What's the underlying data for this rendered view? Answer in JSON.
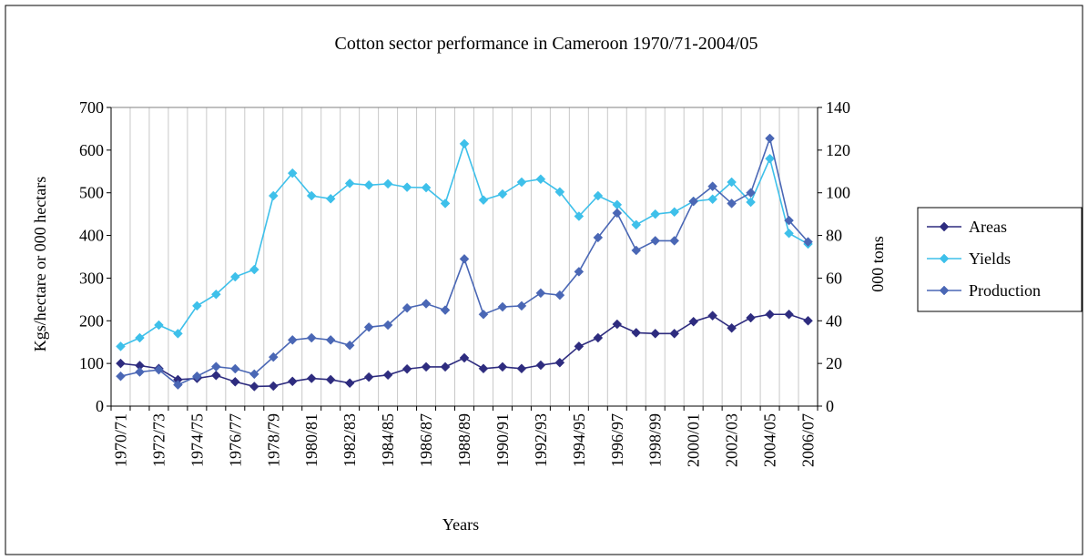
{
  "chart_data": {
    "type": "line",
    "title": "Cotton sector performance in Cameroon 1970/71-2004/05",
    "xlabel": "Years",
    "ylabel_left": "Kgs/hectare or 000 hectars",
    "ylabel_right": "000 tons",
    "ylim_left": [
      0,
      700
    ],
    "ylim_right": [
      0,
      140
    ],
    "yticks_left": [
      "0",
      "100",
      "200",
      "300",
      "400",
      "500",
      "600",
      "700"
    ],
    "yticks_right": [
      "0",
      "20",
      "40",
      "60",
      "80",
      "100",
      "120",
      "140"
    ],
    "grid": "vertical",
    "legend": "right",
    "categories": [
      "1970/71",
      "1971/72",
      "1972/73",
      "1973/74",
      "1974/75",
      "1975/76",
      "1976/77",
      "1977/78",
      "1978/79",
      "1979/80",
      "1980/81",
      "1981/82",
      "1982/83",
      "1983/84",
      "1984/85",
      "1985/86",
      "1986/87",
      "1987/88",
      "1988/89",
      "1989/90",
      "1990/91",
      "1991/92",
      "1992/93",
      "1993/94",
      "1994/95",
      "1995/96",
      "1996/97",
      "1997/98",
      "1998/99",
      "1999/00",
      "2000/01",
      "2001/02",
      "2002/03",
      "2003/04",
      "2004/05",
      "2005/06",
      "2006/07"
    ],
    "tick_labels": [
      "1970/71",
      "1972/73",
      "1974/75",
      "1976/77",
      "1978/79",
      "1980/81",
      "1982/83",
      "1984/85",
      "1986/87",
      "1988/89",
      "1990/91",
      "1992/93",
      "1994/95",
      "1996/97",
      "1998/99",
      "2000/01",
      "2002/03",
      "2004/05",
      "2006/07"
    ],
    "series": [
      {
        "name": "Areas",
        "axis": "left",
        "color": "#2e2c7f",
        "values": [
          100,
          95,
          88,
          62,
          65,
          72,
          57,
          46,
          47,
          58,
          65,
          62,
          54,
          68,
          73,
          87,
          92,
          92,
          113,
          88,
          92,
          88,
          96,
          102,
          140,
          160,
          192,
          172,
          170,
          170,
          198,
          212,
          183,
          207,
          215,
          215,
          200
        ]
      },
      {
        "name": "Yields",
        "axis": "left",
        "color": "#3ec0ea",
        "values": [
          140,
          160,
          190,
          170,
          235,
          262,
          303,
          320,
          493,
          546,
          493,
          486,
          522,
          518,
          521,
          513,
          512,
          475,
          615,
          483,
          497,
          525,
          532,
          502,
          445,
          493,
          472,
          425,
          450,
          455,
          480,
          485,
          525,
          478,
          580,
          405,
          380
        ]
      },
      {
        "name": "Production",
        "axis": "right",
        "color": "#4a67b5",
        "values": [
          14,
          16,
          17,
          10,
          14,
          18.5,
          17.5,
          15,
          23,
          31,
          32,
          31,
          28.5,
          37,
          38,
          46,
          48,
          45,
          69,
          43,
          46.5,
          47,
          53,
          52,
          63,
          79,
          90.5,
          73,
          77.5,
          77.5,
          96,
          103,
          95,
          100,
          125.5,
          87,
          77
        ]
      }
    ]
  }
}
